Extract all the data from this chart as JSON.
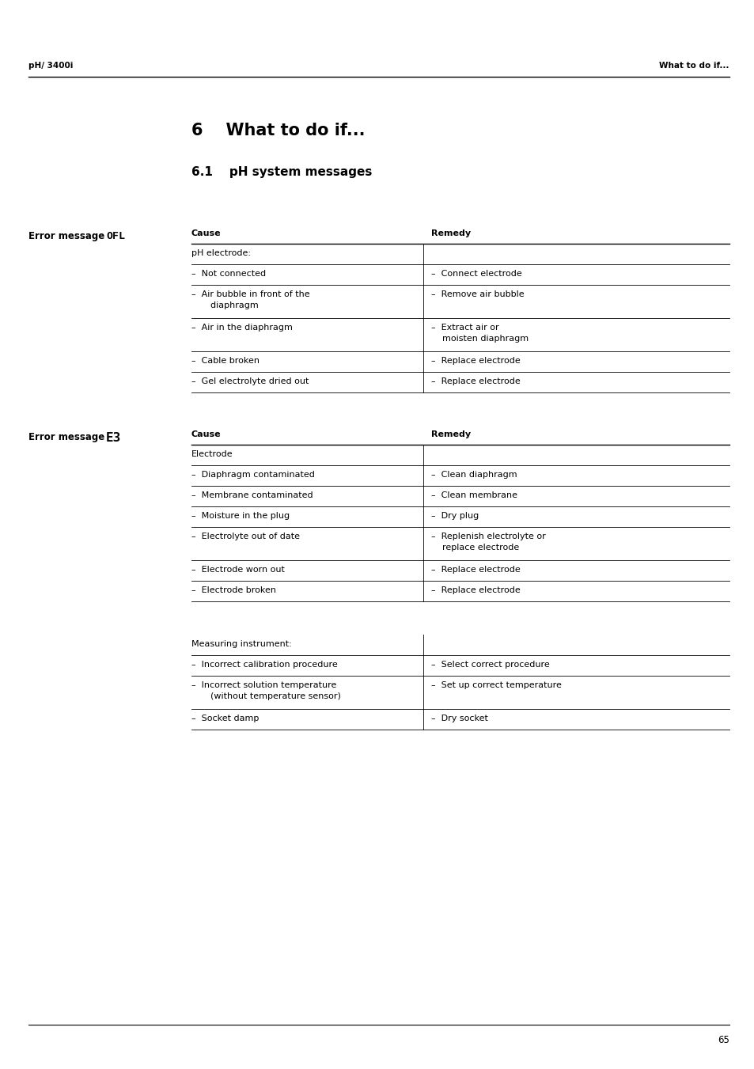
{
  "header_left": "pH/ 3400i",
  "header_right": "What to do if...",
  "chapter_title": "6    What to do if...",
  "section_title": "6.1    pH system messages",
  "error1_label": "Error message ",
  "error1_symbol": "OFL",
  "error2_label": "Error message ",
  "error2_symbol": "E3",
  "col_header_cause": "Cause",
  "col_header_remedy": "Remedy",
  "table1_rows": [
    {
      "cause": "pH electrode:",
      "remedy": "",
      "is_header": true
    },
    {
      "cause": "–  Not connected",
      "remedy": "–  Connect electrode",
      "is_header": false
    },
    {
      "cause": "–  Air bubble in front of the\n    diaphragm",
      "remedy": "–  Remove air bubble",
      "is_header": false
    },
    {
      "cause": "–  Air in the diaphragm",
      "remedy": "–  Extract air or\n    moisten diaphragm",
      "is_header": false
    },
    {
      "cause": "–  Cable broken",
      "remedy": "–  Replace electrode",
      "is_header": false
    },
    {
      "cause": "–  Gel electrolyte dried out",
      "remedy": "–  Replace electrode",
      "is_header": false
    }
  ],
  "table2_rows": [
    {
      "cause": "Electrode",
      "remedy": "",
      "is_header": true
    },
    {
      "cause": "–  Diaphragm contaminated",
      "remedy": "–  Clean diaphragm",
      "is_header": false
    },
    {
      "cause": "–  Membrane contaminated",
      "remedy": "–  Clean membrane",
      "is_header": false
    },
    {
      "cause": "–  Moisture in the plug",
      "remedy": "–  Dry plug",
      "is_header": false
    },
    {
      "cause": "–  Electrolyte out of date",
      "remedy": "–  Replenish electrolyte or\n    replace electrode",
      "is_header": false
    },
    {
      "cause": "–  Electrode worn out",
      "remedy": "–  Replace electrode",
      "is_header": false
    },
    {
      "cause": "–  Electrode broken",
      "remedy": "–  Replace electrode",
      "is_header": false
    }
  ],
  "table3_rows": [
    {
      "cause": "Measuring instrument:",
      "remedy": "",
      "is_header": true
    },
    {
      "cause": "–  Incorrect calibration procedure",
      "remedy": "–  Select correct procedure",
      "is_header": false
    },
    {
      "cause": "–  Incorrect solution temperature\n    (without temperature sensor)",
      "remedy": "–  Set up correct temperature",
      "is_header": false
    },
    {
      "cause": "–  Socket damp",
      "remedy": "–  Dry socket",
      "is_header": false
    }
  ],
  "footer_page": "65",
  "bg_color": "#ffffff",
  "text_color": "#000000",
  "font_size_header": 7.5,
  "font_size_chapter": 15,
  "font_size_section": 11,
  "font_size_table": 8.0,
  "font_size_error_label": 8.5,
  "font_size_footer": 8.5
}
